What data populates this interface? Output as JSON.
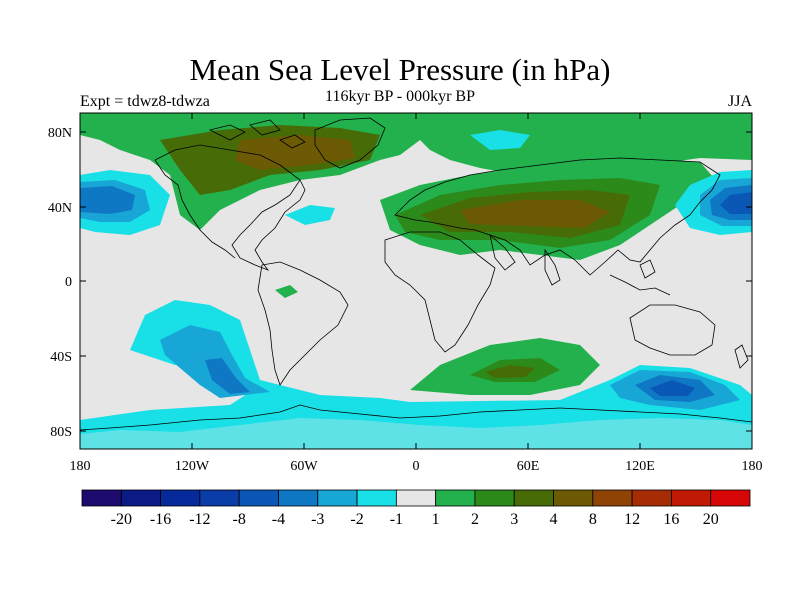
{
  "title": "Mean Sea Level Pressure (in hPa)",
  "subtitle_left": "Expt = tdwz8-tdwza",
  "subtitle_center": "116kyr BP - 000kyr BP",
  "subtitle_right": "JJA",
  "lat_labels": [
    "80N",
    "40N",
    "0",
    "40S",
    "80S"
  ],
  "lon_labels": [
    "180",
    "120W",
    "60W",
    "0",
    "60E",
    "120E",
    "180"
  ],
  "colorbar": {
    "labels": [
      "-20",
      "-16",
      "-12",
      "-8",
      "-4",
      "-3",
      "-2",
      "-1",
      "1",
      "2",
      "3",
      "4",
      "8",
      "12",
      "16",
      "20"
    ],
    "colors": [
      "#1e0a6e",
      "#0c1a85",
      "#06299c",
      "#0a3da8",
      "#0a57b5",
      "#0e78c4",
      "#17a6d6",
      "#18e0e6",
      "#e6e6e6",
      "#22b14c",
      "#2c8a1a",
      "#466b07",
      "#6d5a05",
      "#8f4405",
      "#a52c05",
      "#c01a05",
      "#d80707"
    ]
  },
  "colors": {
    "background_field": "#e6e6e6",
    "coast": "#000000"
  }
}
